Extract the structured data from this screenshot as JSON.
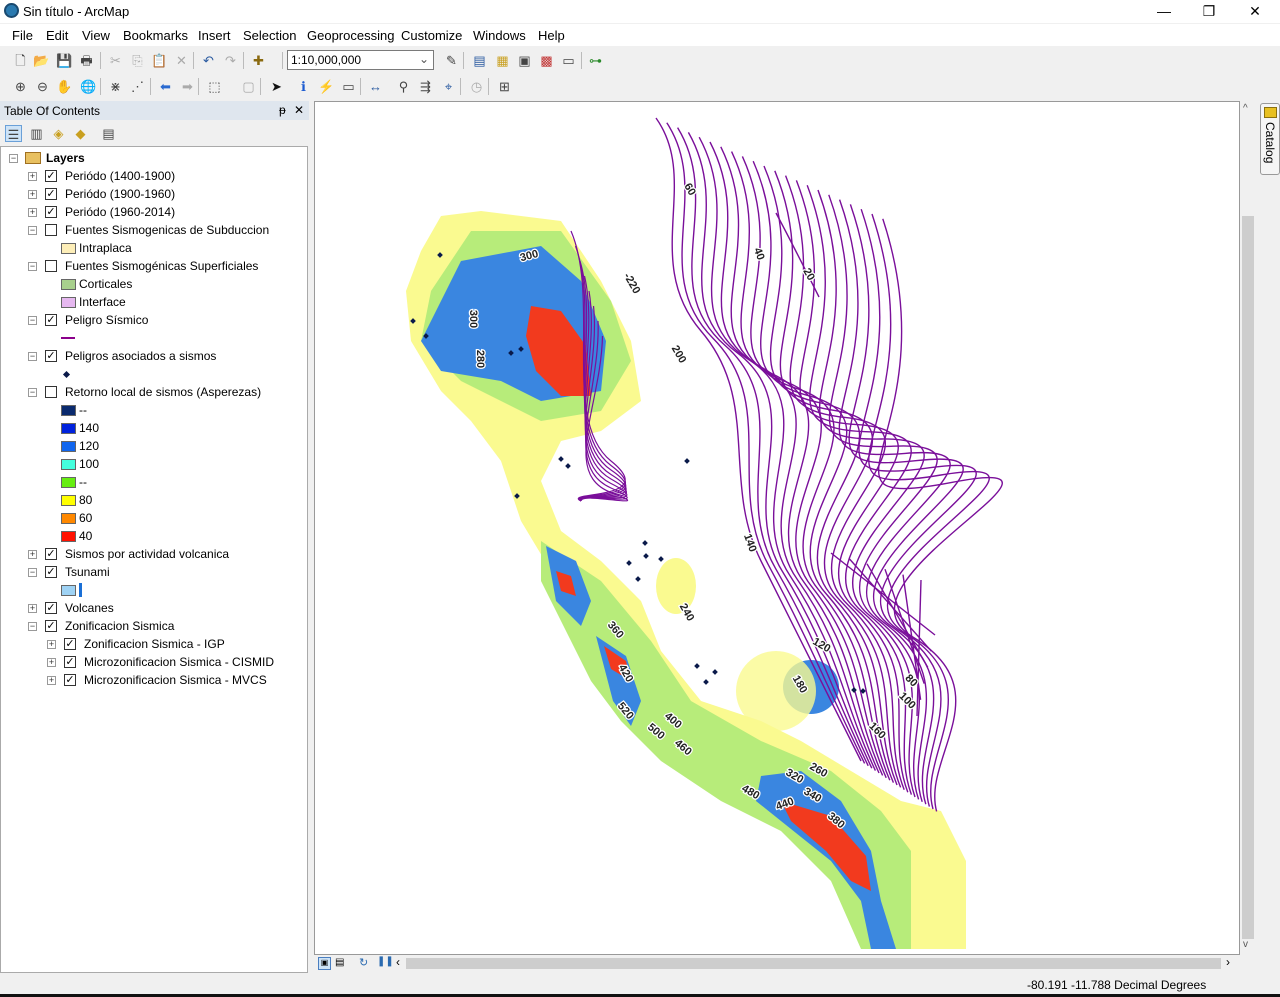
{
  "window": {
    "title": "Sin título - ArcMap",
    "minimize": "—",
    "maximize": "❐",
    "close": "✕"
  },
  "menu": [
    "File",
    "Edit",
    "View",
    "Bookmarks",
    "Insert",
    "Selection",
    "Geoprocessing",
    "Customize",
    "Windows",
    "Help"
  ],
  "toolbar": {
    "scale": "1:10,000,000"
  },
  "toc": {
    "title": "Table Of Contents",
    "pin": "ᵽ",
    "close": "✕",
    "root": "Layers",
    "items": [
      {
        "label": "Periódo (1400-1900)",
        "checked": true,
        "expanded": false
      },
      {
        "label": "Periódo (1900-1960)",
        "checked": true,
        "expanded": false
      },
      {
        "label": "Periódo (1960-2014)",
        "checked": true,
        "expanded": false
      },
      {
        "label": "Fuentes Sismogenicas de Subduccion",
        "checked": false,
        "expanded": true,
        "legend": [
          {
            "label": "Intraplaca",
            "color": "#fdeeb8"
          }
        ]
      },
      {
        "label": "Fuentes Sismogénicas Superficiales",
        "checked": false,
        "expanded": true,
        "legend": [
          {
            "label": "Corticales",
            "color": "#a8d08d"
          },
          {
            "label": "Interface",
            "color": "#e6b8f0"
          }
        ]
      },
      {
        "label": "Peligro Sísmico",
        "checked": true,
        "expanded": true,
        "legend": [
          {
            "label": "",
            "line": "#8b008b"
          }
        ]
      },
      {
        "label": "Peligros asociados a sismos",
        "checked": true,
        "expanded": true,
        "legend": [
          {
            "label": "",
            "point": "#0a1a4a"
          }
        ]
      },
      {
        "label": "Retorno local de sismos (Asperezas)",
        "checked": false,
        "expanded": true,
        "legend": [
          {
            "label": "--",
            "color": "#0a2a6e"
          },
          {
            "label": "140",
            "color": "#0022dd"
          },
          {
            "label": "120",
            "color": "#1166ee"
          },
          {
            "label": "100",
            "color": "#44ffdd"
          },
          {
            "label": "--",
            "color": "#66ee11"
          },
          {
            "label": "80",
            "color": "#ffff00"
          },
          {
            "label": "60",
            "color": "#ff8800"
          },
          {
            "label": "40",
            "color": "#ff1100"
          }
        ]
      },
      {
        "label": "Sismos por actividad volcanica",
        "checked": true,
        "expanded": false
      },
      {
        "label": "Tsunami",
        "checked": true,
        "expanded": true,
        "legend": [
          {
            "label": "",
            "color": "#9fd3f5",
            "bar": "#1a6fd6"
          }
        ]
      },
      {
        "label": "Volcanes",
        "checked": true,
        "expanded": false
      },
      {
        "label": "Zonificacion Sismica",
        "checked": true,
        "expanded": true,
        "children": [
          {
            "label": "Zonificacion Sismica - IGP",
            "checked": true
          },
          {
            "label": "Microzonificacion Sismica - CISMID",
            "checked": true
          },
          {
            "label": "Microzonificacion Sismica - MVCS",
            "checked": true
          }
        ]
      }
    ]
  },
  "map": {
    "contour_labels": [
      "60",
      "40",
      "20",
      "-220",
      "200",
      "300",
      "300",
      "280",
      "140",
      "240",
      "120",
      "180",
      "80",
      "100",
      "160",
      "360",
      "420",
      "520",
      "400",
      "500",
      "460",
      "260",
      "320",
      "340",
      "480",
      "440",
      "380"
    ],
    "colors": {
      "contour": "#7a0f9a",
      "blue": "#3a86e0",
      "red": "#f23a1e",
      "green": "#b7ec7a",
      "yellow": "#fafa90",
      "lightgreen": "#9be88a"
    }
  },
  "catalog": {
    "label": "Catalog"
  },
  "status": {
    "coordinates": "-80.191  -11.788 Decimal Degrees"
  }
}
